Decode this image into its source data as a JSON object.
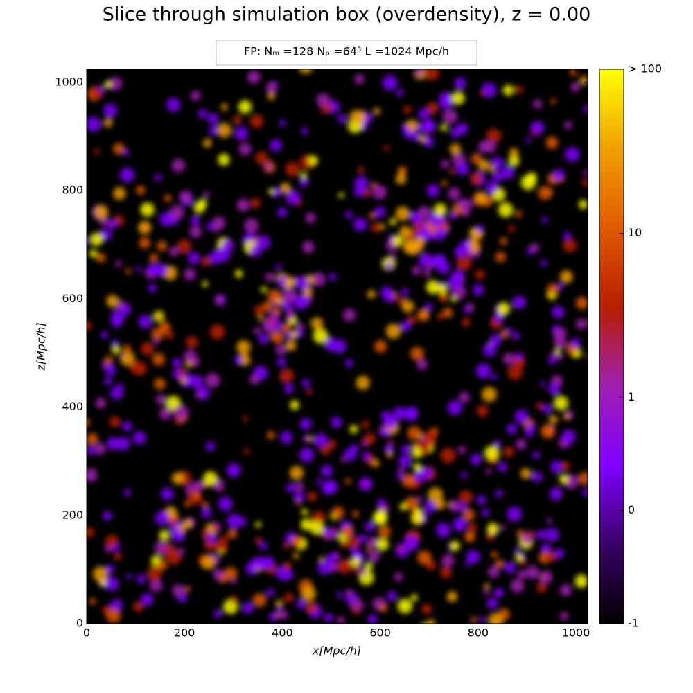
{
  "chart_data": {
    "type": "heatmap",
    "title": "Slice through simulation box (overdensity), z = 0.00",
    "subtitle": "FP:  Nₘ =128   Nₚ =64³   L =1024 Mpc/h",
    "xlabel": "x[Mpc/h]",
    "ylabel": "z[Mpc/h]",
    "xlim": [
      0,
      1024
    ],
    "ylim": [
      0,
      1024
    ],
    "xticks": [
      0,
      200,
      400,
      600,
      800,
      1000
    ],
    "yticks": [
      0,
      200,
      400,
      600,
      800,
      1000
    ],
    "colorbar_lim": [
      -1,
      100
    ],
    "colorbar_ticks": [
      -1,
      0,
      1,
      10,
      {
        "value": 100,
        "label": "> 100"
      }
    ],
    "colorbar_scale": "symlog",
    "colorbar_linthresh": 1,
    "colorbar_linscale": 0.69,
    "colormap": [
      "#000000",
      "#3a0066",
      "#7f00ff",
      "#a020b0",
      "#b81e00",
      "#e05a00",
      "#f0a000",
      "#ffff00"
    ]
  }
}
